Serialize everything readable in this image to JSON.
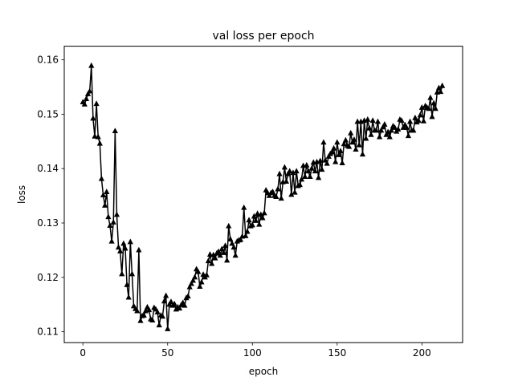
{
  "chart_data": {
    "type": "line",
    "title": "val loss per epoch",
    "xlabel": "epoch",
    "ylabel": "loss",
    "xlim": [
      -11,
      224
    ],
    "ylim": [
      0.108,
      0.1625
    ],
    "grid": false,
    "legend": "none",
    "marker": "triangle-up",
    "line_color": "#000000",
    "x_ticks": [
      {
        "value": 0,
        "label": "0"
      },
      {
        "value": 50,
        "label": "50"
      },
      {
        "value": 100,
        "label": "100"
      },
      {
        "value": 150,
        "label": "150"
      },
      {
        "value": 200,
        "label": "200"
      }
    ],
    "y_ticks": [
      {
        "value": 0.11,
        "label": "0.11"
      },
      {
        "value": 0.12,
        "label": "0.12"
      },
      {
        "value": 0.13,
        "label": "0.13"
      },
      {
        "value": 0.14,
        "label": "0.14"
      },
      {
        "value": 0.15,
        "label": "0.15"
      },
      {
        "value": 0.16,
        "label": "0.16"
      }
    ],
    "series": [
      {
        "values": [
          0.1522,
          0.1518,
          0.1528,
          0.1537,
          0.1542,
          0.1589,
          0.1492,
          0.1459,
          0.1519,
          0.1458,
          0.1446,
          0.1381,
          0.1351,
          0.1332,
          0.1357,
          0.1311,
          0.1295,
          0.1266,
          0.1301,
          0.1469,
          0.1315,
          0.1255,
          0.1248,
          0.1206,
          0.1262,
          0.1253,
          0.1186,
          0.1163,
          0.1265,
          0.1206,
          0.1147,
          0.1142,
          0.1138,
          0.125,
          0.112,
          0.1129,
          0.113,
          0.1138,
          0.1145,
          0.114,
          0.1123,
          0.1121,
          0.1144,
          0.1141,
          0.1136,
          0.1112,
          0.113,
          0.1128,
          0.1156,
          0.1166,
          0.1105,
          0.115,
          0.1155,
          0.1148,
          0.1151,
          0.1141,
          0.1145,
          0.1143,
          0.1149,
          0.1153,
          0.1148,
          0.1162,
          0.1165,
          0.1182,
          0.1188,
          0.1194,
          0.12,
          0.1215,
          0.121,
          0.1183,
          0.1191,
          0.1205,
          0.12,
          0.1204,
          0.123,
          0.1242,
          0.1225,
          0.1241,
          0.1235,
          0.1244,
          0.1247,
          0.124,
          0.1252,
          0.1245,
          0.1258,
          0.1231,
          0.1294,
          0.127,
          0.1262,
          0.1255,
          0.124,
          0.1266,
          0.1268,
          0.1269,
          0.1275,
          0.1328,
          0.1276,
          0.1284,
          0.1305,
          0.1294,
          0.1296,
          0.1312,
          0.1304,
          0.1317,
          0.1297,
          0.1315,
          0.1309,
          0.1318,
          0.136,
          0.1355,
          0.135,
          0.1355,
          0.1357,
          0.135,
          0.1348,
          0.1362,
          0.139,
          0.1345,
          0.1375,
          0.1402,
          0.1376,
          0.139,
          0.1395,
          0.1352,
          0.1392,
          0.1356,
          0.1395,
          0.1368,
          0.137,
          0.138,
          0.1405,
          0.1385,
          0.1406,
          0.1395,
          0.1385,
          0.14,
          0.1411,
          0.1395,
          0.1412,
          0.1383,
          0.1414,
          0.1398,
          0.1448,
          0.1415,
          0.1409,
          0.1422,
          0.1427,
          0.143,
          0.1437,
          0.1412,
          0.1448,
          0.1425,
          0.1432,
          0.141,
          0.1445,
          0.1452,
          0.1442,
          0.144,
          0.1465,
          0.1448,
          0.1453,
          0.1435,
          0.1486,
          0.1443,
          0.1486,
          0.1426,
          0.1488,
          0.1455,
          0.149,
          0.1474,
          0.1462,
          0.1488,
          0.147,
          0.147,
          0.1486,
          0.1458,
          0.147,
          0.1476,
          0.1481,
          0.1462,
          0.1467,
          0.1458,
          0.147,
          0.1478,
          0.1475,
          0.1468,
          0.1472,
          0.149,
          0.1488,
          0.1475,
          0.148,
          0.1475,
          0.146,
          0.1486,
          0.147,
          0.147,
          0.1493,
          0.1485,
          0.1488,
          0.1498,
          0.1512,
          0.1487,
          0.1515,
          0.1512,
          0.151,
          0.153,
          0.1495,
          0.152,
          0.151,
          0.154,
          0.1548,
          0.1541,
          0.1552
        ]
      }
    ]
  }
}
